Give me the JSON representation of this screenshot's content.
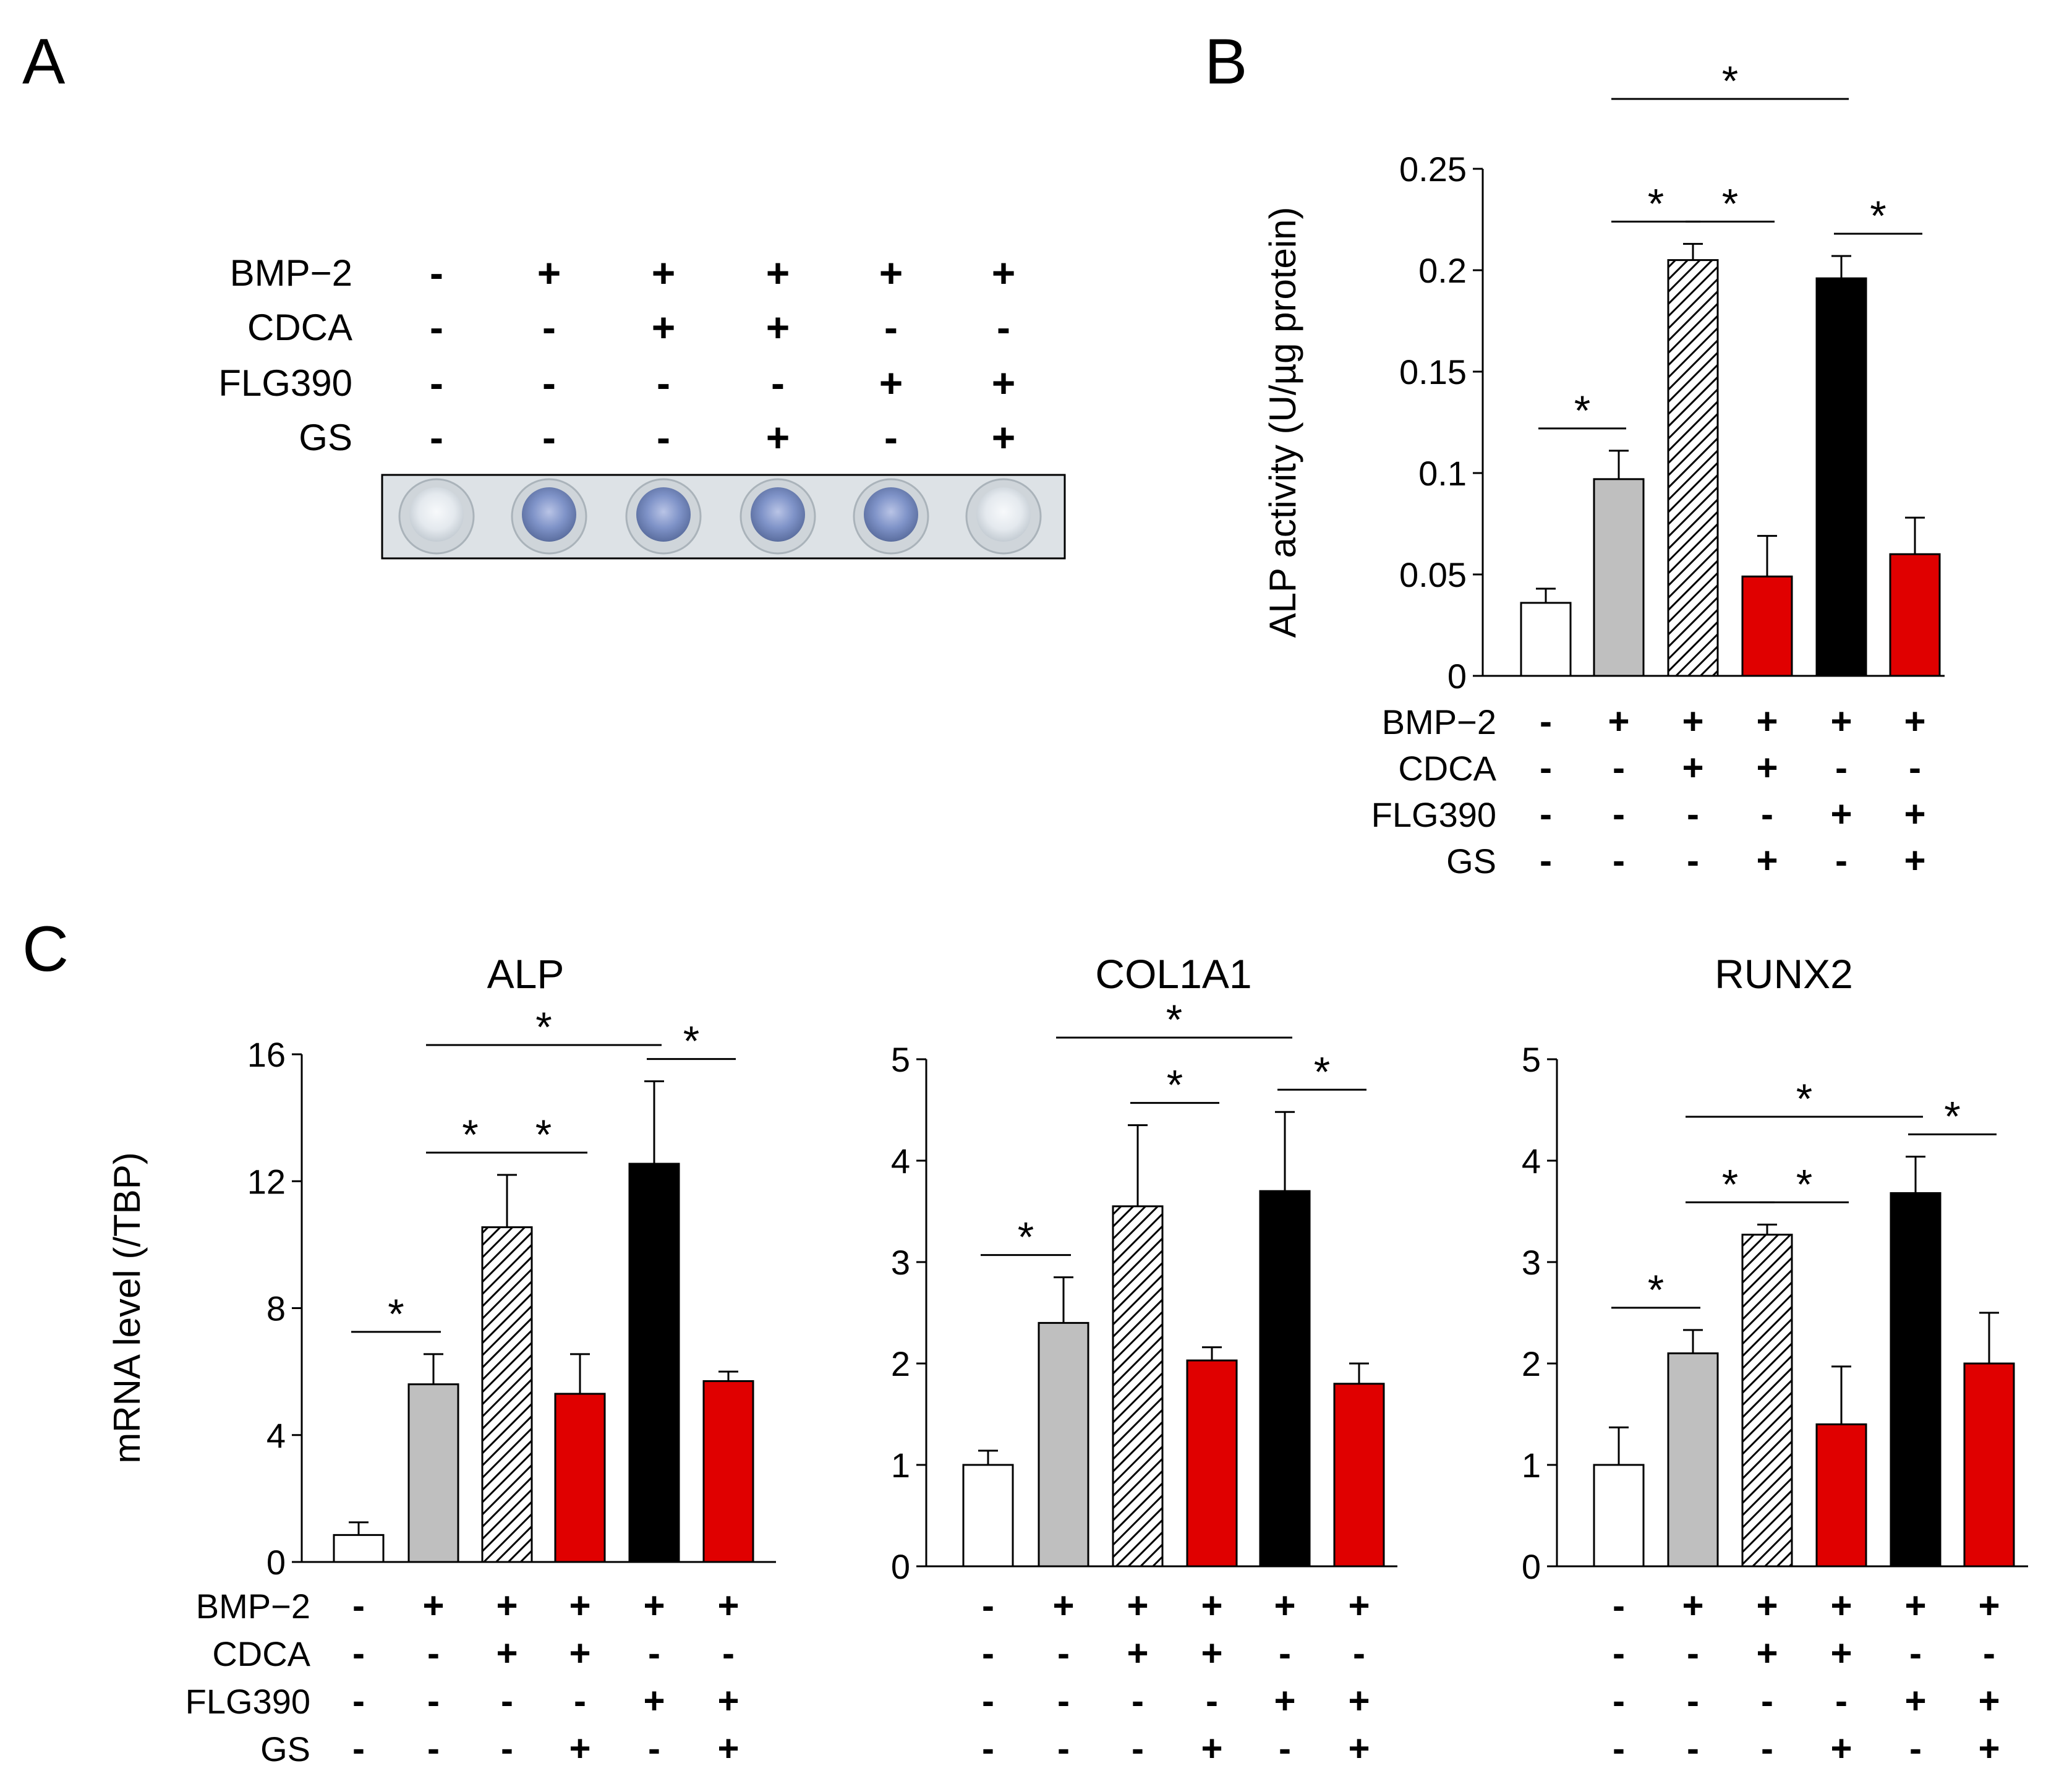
{
  "panels": [
    "A",
    "B",
    "C"
  ],
  "treatments": [
    "BMP−2",
    "CDCA",
    "FLG390",
    "GS"
  ],
  "conditions": [
    [
      "-",
      "+",
      "+",
      "+",
      "+",
      "+"
    ],
    [
      "-",
      "-",
      "+",
      "+",
      "-",
      "-"
    ],
    [
      "-",
      "-",
      "-",
      "-",
      "+",
      "+"
    ],
    [
      "-",
      "-",
      "-",
      "+",
      "-",
      "+"
    ]
  ],
  "colors": {
    "bars": [
      "#ffffff",
      "#bfbfbf",
      "hatch",
      "#e00000",
      "#000000",
      "#e00000"
    ],
    "well_blue": "#7f93c8",
    "well_clear": "#e6eaee"
  },
  "significance_marker": "*",
  "chart_data": [
    {
      "id": "B",
      "type": "bar",
      "title": "",
      "xlabel": "",
      "ylabel": "ALP activity (U/µg protein)",
      "ylim": [
        0,
        0.25
      ],
      "yticks": [
        "0",
        "0.05",
        "0.1",
        "0.15",
        "0.2",
        "0.25"
      ],
      "values": [
        0.036,
        0.097,
        0.205,
        0.049,
        0.196,
        0.06
      ],
      "errors": [
        0.007,
        0.014,
        0.008,
        0.02,
        0.011,
        0.018
      ],
      "significance": [
        [
          0,
          1
        ],
        [
          1,
          2
        ],
        [
          2,
          3
        ],
        [
          1,
          4
        ],
        [
          4,
          5
        ]
      ]
    },
    {
      "id": "C-ALP",
      "type": "bar",
      "title": "ALP",
      "xlabel": "",
      "ylabel": "mRNA level (/TBP)",
      "ylim": [
        0,
        16
      ],
      "yticks": [
        "0",
        "4",
        "8",
        "12",
        "16"
      ],
      "values": [
        0.85,
        5.6,
        10.55,
        5.3,
        12.55,
        5.7
      ],
      "errors": [
        0.4,
        0.95,
        1.65,
        1.25,
        2.6,
        0.3
      ],
      "significance": [
        [
          0,
          1
        ],
        [
          1,
          2
        ],
        [
          2,
          3
        ],
        [
          1,
          4
        ],
        [
          4,
          5
        ]
      ]
    },
    {
      "id": "C-COL1A1",
      "type": "bar",
      "title": "COL1A1",
      "xlabel": "",
      "ylabel": "",
      "ylim": [
        0,
        5
      ],
      "yticks": [
        "0",
        "1",
        "2",
        "3",
        "4",
        "5"
      ],
      "values": [
        1.0,
        2.4,
        3.55,
        2.03,
        3.7,
        1.8
      ],
      "errors": [
        0.14,
        0.45,
        0.8,
        0.13,
        0.78,
        0.2
      ],
      "significance": [
        [
          0,
          1
        ],
        [
          2,
          3
        ],
        [
          1,
          4
        ],
        [
          4,
          5
        ]
      ]
    },
    {
      "id": "C-RUNX2",
      "type": "bar",
      "title": "RUNX2",
      "xlabel": "",
      "ylabel": "",
      "ylim": [
        0,
        5
      ],
      "yticks": [
        "0",
        "1",
        "2",
        "3",
        "4",
        "5"
      ],
      "values": [
        1.0,
        2.1,
        3.27,
        1.4,
        3.68,
        2.0
      ],
      "errors": [
        0.37,
        0.23,
        0.1,
        0.57,
        0.36,
        0.5
      ],
      "significance": [
        [
          0,
          1
        ],
        [
          1,
          2
        ],
        [
          2,
          3
        ],
        [
          1,
          4
        ],
        [
          4,
          5
        ]
      ]
    }
  ]
}
